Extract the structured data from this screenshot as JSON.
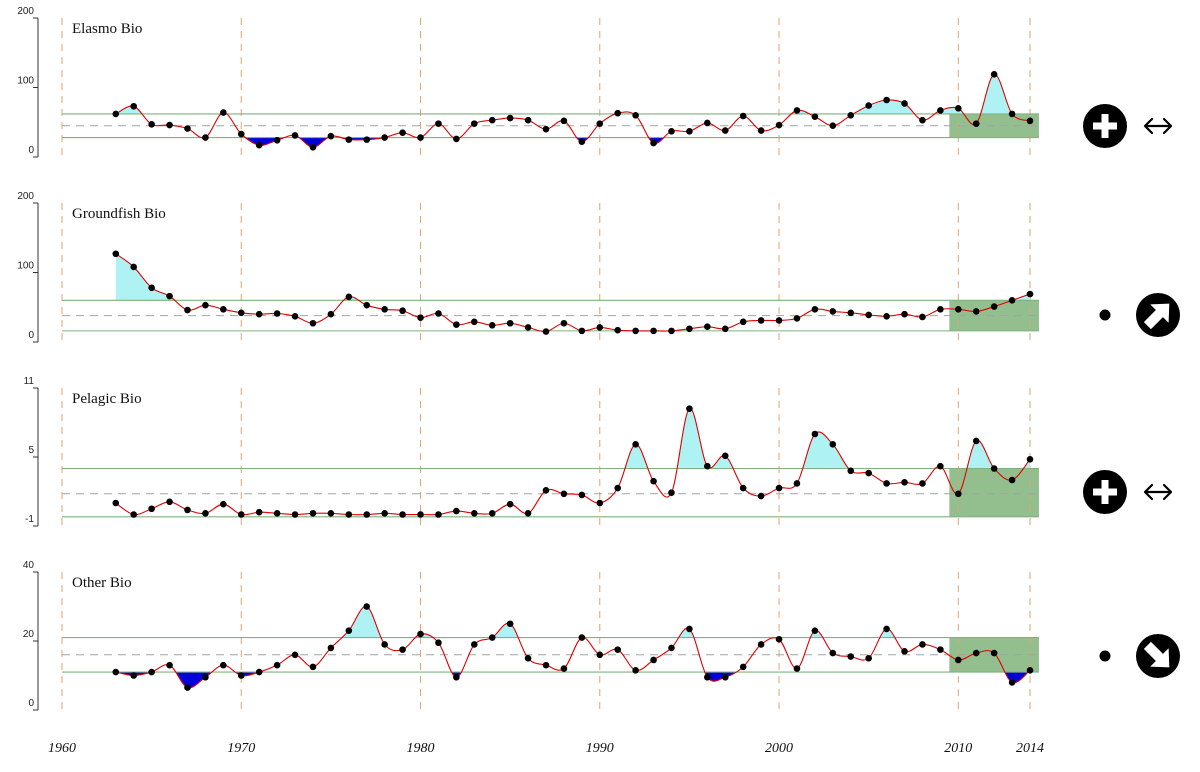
{
  "chart_data": {
    "type": "line",
    "x_axis": {
      "ticks": [
        1960,
        1970,
        1980,
        1990,
        2000,
        2010,
        2014
      ],
      "range": [
        1960,
        2014
      ]
    },
    "colors": {
      "line": "#e00000",
      "point": "#000000",
      "above_fill": "#aef2f4",
      "below_fill": "#0000dd",
      "band_line": "#7fb27f",
      "mean_line": "#9aa7a3",
      "recent_fill": "#93bf8f",
      "year_grid": "#e2a36f"
    },
    "panels": [
      {
        "title": "Elasmo Bio",
        "yticks": [
          "0",
          "100",
          "200"
        ],
        "ylim": [
          0,
          200
        ],
        "mean": 45,
        "upper": 62,
        "lower": 28,
        "status_icons": [
          "plus-circle-icon",
          "double-arrow-icon"
        ],
        "x": [
          1963,
          1964,
          1965,
          1966,
          1967,
          1968,
          1969,
          1970,
          1971,
          1972,
          1973,
          1974,
          1975,
          1976,
          1977,
          1978,
          1979,
          1980,
          1981,
          1982,
          1983,
          1984,
          1985,
          1986,
          1987,
          1988,
          1989,
          1990,
          1991,
          1992,
          1993,
          1994,
          1995,
          1996,
          1997,
          1998,
          1999,
          2000,
          2001,
          2002,
          2003,
          2004,
          2005,
          2006,
          2007,
          2008,
          2009,
          2010,
          2011,
          2012,
          2013,
          2014
        ],
        "values": [
          62,
          73,
          47,
          46,
          41,
          28,
          64,
          33,
          17,
          24,
          31,
          14,
          30,
          25,
          25,
          28,
          35,
          28,
          48,
          26,
          48,
          53,
          56,
          53,
          40,
          52,
          22,
          48,
          63,
          60,
          20,
          37,
          37,
          49,
          38,
          59,
          38,
          46,
          67,
          58,
          45,
          60,
          74,
          82,
          77,
          53,
          67,
          70,
          48,
          119,
          62,
          52
        ]
      },
      {
        "title": "Groundfish Bio",
        "yticks": [
          "0",
          "100",
          "200"
        ],
        "ylim": [
          0,
          200
        ],
        "mean": 38,
        "upper": 60,
        "lower": 16,
        "status_icons": [
          "dot-icon",
          "arrow-up-right-circle-icon"
        ],
        "x": [
          1963,
          1964,
          1965,
          1966,
          1967,
          1968,
          1969,
          1970,
          1971,
          1972,
          1973,
          1974,
          1975,
          1976,
          1977,
          1978,
          1979,
          1980,
          1981,
          1982,
          1983,
          1984,
          1985,
          1986,
          1987,
          1988,
          1989,
          1990,
          1991,
          1992,
          1993,
          1994,
          1995,
          1996,
          1997,
          1998,
          1999,
          2000,
          2001,
          2002,
          2003,
          2004,
          2005,
          2006,
          2007,
          2008,
          2009,
          2010,
          2011,
          2012,
          2013,
          2014
        ],
        "values": [
          127,
          108,
          78,
          66,
          46,
          53,
          47,
          42,
          40,
          41,
          37,
          27,
          40,
          65,
          53,
          47,
          45,
          35,
          41,
          25,
          29,
          24,
          27,
          21,
          15,
          27,
          16,
          21,
          17,
          16,
          16,
          16,
          19,
          22,
          19,
          29,
          31,
          31,
          34,
          47,
          44,
          42,
          39,
          37,
          40,
          36,
          47,
          47,
          44,
          51,
          60,
          69
        ]
      },
      {
        "title": "Pelagic Bio",
        "yticks": [
          "-1",
          "5",
          "11"
        ],
        "ylim": [
          -1,
          11
        ],
        "mean": 1.8,
        "upper": 4.0,
        "lower": -0.2,
        "status_icons": [
          "plus-circle-icon",
          "double-arrow-icon"
        ],
        "x": [
          1963,
          1964,
          1965,
          1966,
          1967,
          1968,
          1969,
          1970,
          1971,
          1972,
          1973,
          1974,
          1975,
          1976,
          1977,
          1978,
          1979,
          1980,
          1981,
          1982,
          1983,
          1984,
          1985,
          1986,
          1987,
          1988,
          1989,
          1990,
          1991,
          1992,
          1993,
          1994,
          1995,
          1996,
          1997,
          1998,
          1999,
          2000,
          2001,
          2002,
          2003,
          2004,
          2005,
          2006,
          2007,
          2008,
          2009,
          2010,
          2011,
          2012,
          2013,
          2014
        ],
        "values": [
          1.0,
          0.0,
          0.5,
          1.1,
          0.4,
          0.1,
          0.9,
          0.0,
          0.2,
          0.1,
          0.0,
          0.1,
          0.1,
          0.0,
          0.0,
          0.1,
          0.0,
          0.0,
          0.0,
          0.3,
          0.1,
          0.1,
          0.9,
          0.1,
          2.1,
          1.8,
          1.7,
          1.0,
          2.3,
          6.1,
          2.9,
          1.9,
          9.2,
          4.2,
          5.1,
          2.3,
          1.6,
          2.3,
          2.7,
          7.0,
          6.1,
          3.8,
          3.6,
          2.7,
          2.8,
          2.7,
          4.2,
          1.8,
          6.4,
          4.0,
          3.0,
          4.8
        ]
      },
      {
        "title": "Other Bio",
        "yticks": [
          "0",
          "20",
          "40"
        ],
        "ylim": [
          0,
          40
        ],
        "mean": 16,
        "upper": 21,
        "lower": 11,
        "status_icons": [
          "dot-icon",
          "arrow-down-right-circle-icon"
        ],
        "x": [
          1963,
          1964,
          1965,
          1966,
          1967,
          1968,
          1969,
          1970,
          1971,
          1972,
          1973,
          1974,
          1975,
          1976,
          1977,
          1978,
          1979,
          1980,
          1981,
          1982,
          1983,
          1984,
          1985,
          1986,
          1987,
          1988,
          1989,
          1990,
          1991,
          1992,
          1993,
          1994,
          1995,
          1996,
          1997,
          1998,
          1999,
          2000,
          2001,
          2002,
          2003,
          2004,
          2005,
          2006,
          2007,
          2008,
          2009,
          2010,
          2011,
          2012,
          2013,
          2014
        ],
        "values": [
          11,
          10,
          11,
          13,
          6.5,
          9.5,
          13,
          10,
          11,
          13,
          16,
          12.5,
          18,
          23,
          30,
          19,
          17.5,
          22,
          19.5,
          9.5,
          19,
          21,
          25,
          15,
          13,
          12,
          21,
          16,
          17.5,
          11.5,
          14.5,
          18,
          23.5,
          9.5,
          9.5,
          12.5,
          19,
          20.5,
          12,
          23,
          16.5,
          15.5,
          15,
          23.5,
          17,
          19,
          17.5,
          14.5,
          16.5,
          16.5,
          8,
          11.5
        ]
      }
    ]
  }
}
